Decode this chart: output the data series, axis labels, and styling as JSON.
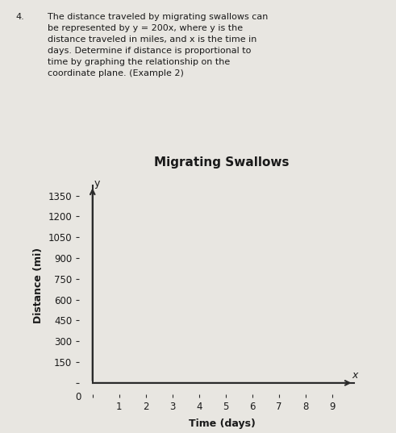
{
  "title": "Migrating Swallows",
  "xlabel": "Time (days)",
  "ylabel": "Distance (mi)",
  "problem_number": "4.",
  "problem_text": "The distance traveled by migrating swallows can\nbe represented by y = 200x, where y is the\ndistance traveled in miles, and x is the time in\ndays. Determine if distance is proportional to\ntime by graphing the relationship on the\ncoordinate plane. (Example 2)",
  "yticks": [
    0,
    150,
    300,
    450,
    600,
    750,
    900,
    1050,
    1200,
    1350
  ],
  "xticks": [
    0,
    1,
    2,
    3,
    4,
    5,
    6,
    7,
    8,
    9
  ],
  "xlim": [
    -0.5,
    10.2
  ],
  "ylim": [
    -80,
    1480
  ],
  "background_color": "#e8e6e1",
  "plot_bg_color": "#e8e6e1",
  "axis_color": "#2a2a2a",
  "text_color": "#1a1a1a",
  "title_fontsize": 11,
  "label_fontsize": 9,
  "tick_fontsize": 8.5,
  "problem_fontsize": 8.0
}
